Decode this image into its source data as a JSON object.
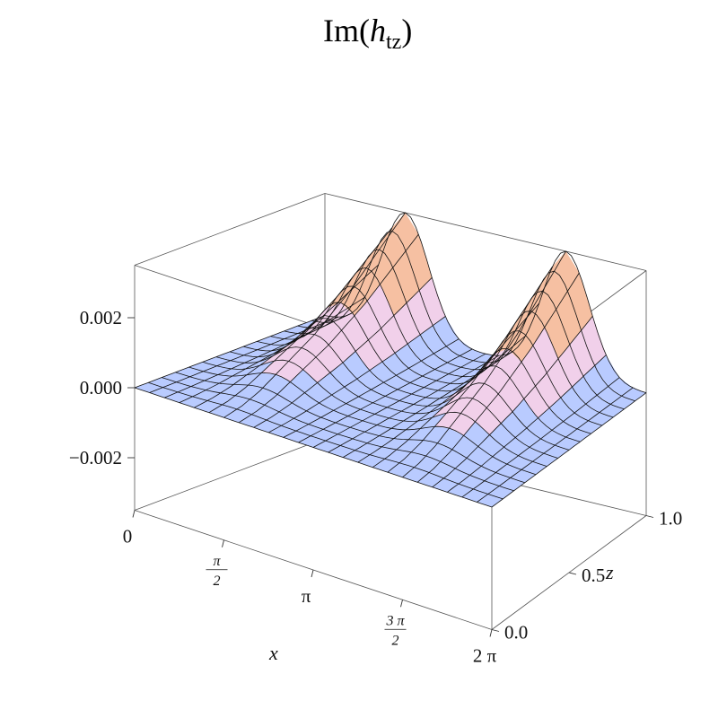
{
  "chart_data": {
    "type": "surface3d",
    "title": {
      "prefix": "Im(",
      "variable": "h",
      "subscript": "tz",
      "suffix": ")"
    },
    "x_axis": {
      "label": "x",
      "range": [
        0,
        6.2832
      ],
      "ticks": [
        {
          "value": 0,
          "text": "0"
        },
        {
          "value": 1.5708,
          "num": "π",
          "den": "2"
        },
        {
          "value": 3.1416,
          "text": "π"
        },
        {
          "value": 4.7124,
          "num": "3 π",
          "den": "2"
        },
        {
          "value": 6.2832,
          "text": "2 π"
        }
      ]
    },
    "z_axis": {
      "label": "z",
      "range": [
        0,
        1
      ],
      "ticks": [
        {
          "value": 0,
          "text": "0.0"
        },
        {
          "value": 0.5,
          "text": "0.5"
        },
        {
          "value": 1,
          "text": "1.0"
        }
      ]
    },
    "value_axis": {
      "range": [
        -0.0035,
        0.0035
      ],
      "ticks": [
        {
          "value": 0.002,
          "text": "0.002"
        },
        {
          "value": 0,
          "text": "0.000"
        },
        {
          "value": -0.002,
          "text": "−0.002"
        }
      ]
    },
    "surface_samples": {
      "z": [
        0,
        0.1,
        0.2,
        0.3,
        0.4,
        0.5,
        0.6,
        0.7,
        0.8,
        0.9,
        1.0
      ],
      "peak_positions_x": [
        1.5708,
        4.7124
      ],
      "peak_values_by_z": [
        0.0,
        0.0001,
        0.0003,
        0.0006,
        0.0009,
        0.0012,
        0.0016,
        0.002,
        0.0025,
        0.003,
        0.0035
      ]
    },
    "colors": {
      "surface_low": "#7a7cff",
      "surface_mid": "#f6d3ea",
      "surface_high": "#f7b88f",
      "surface_edge": "#e2505a",
      "mesh": "#111111"
    },
    "grid": false,
    "legend": "none"
  }
}
